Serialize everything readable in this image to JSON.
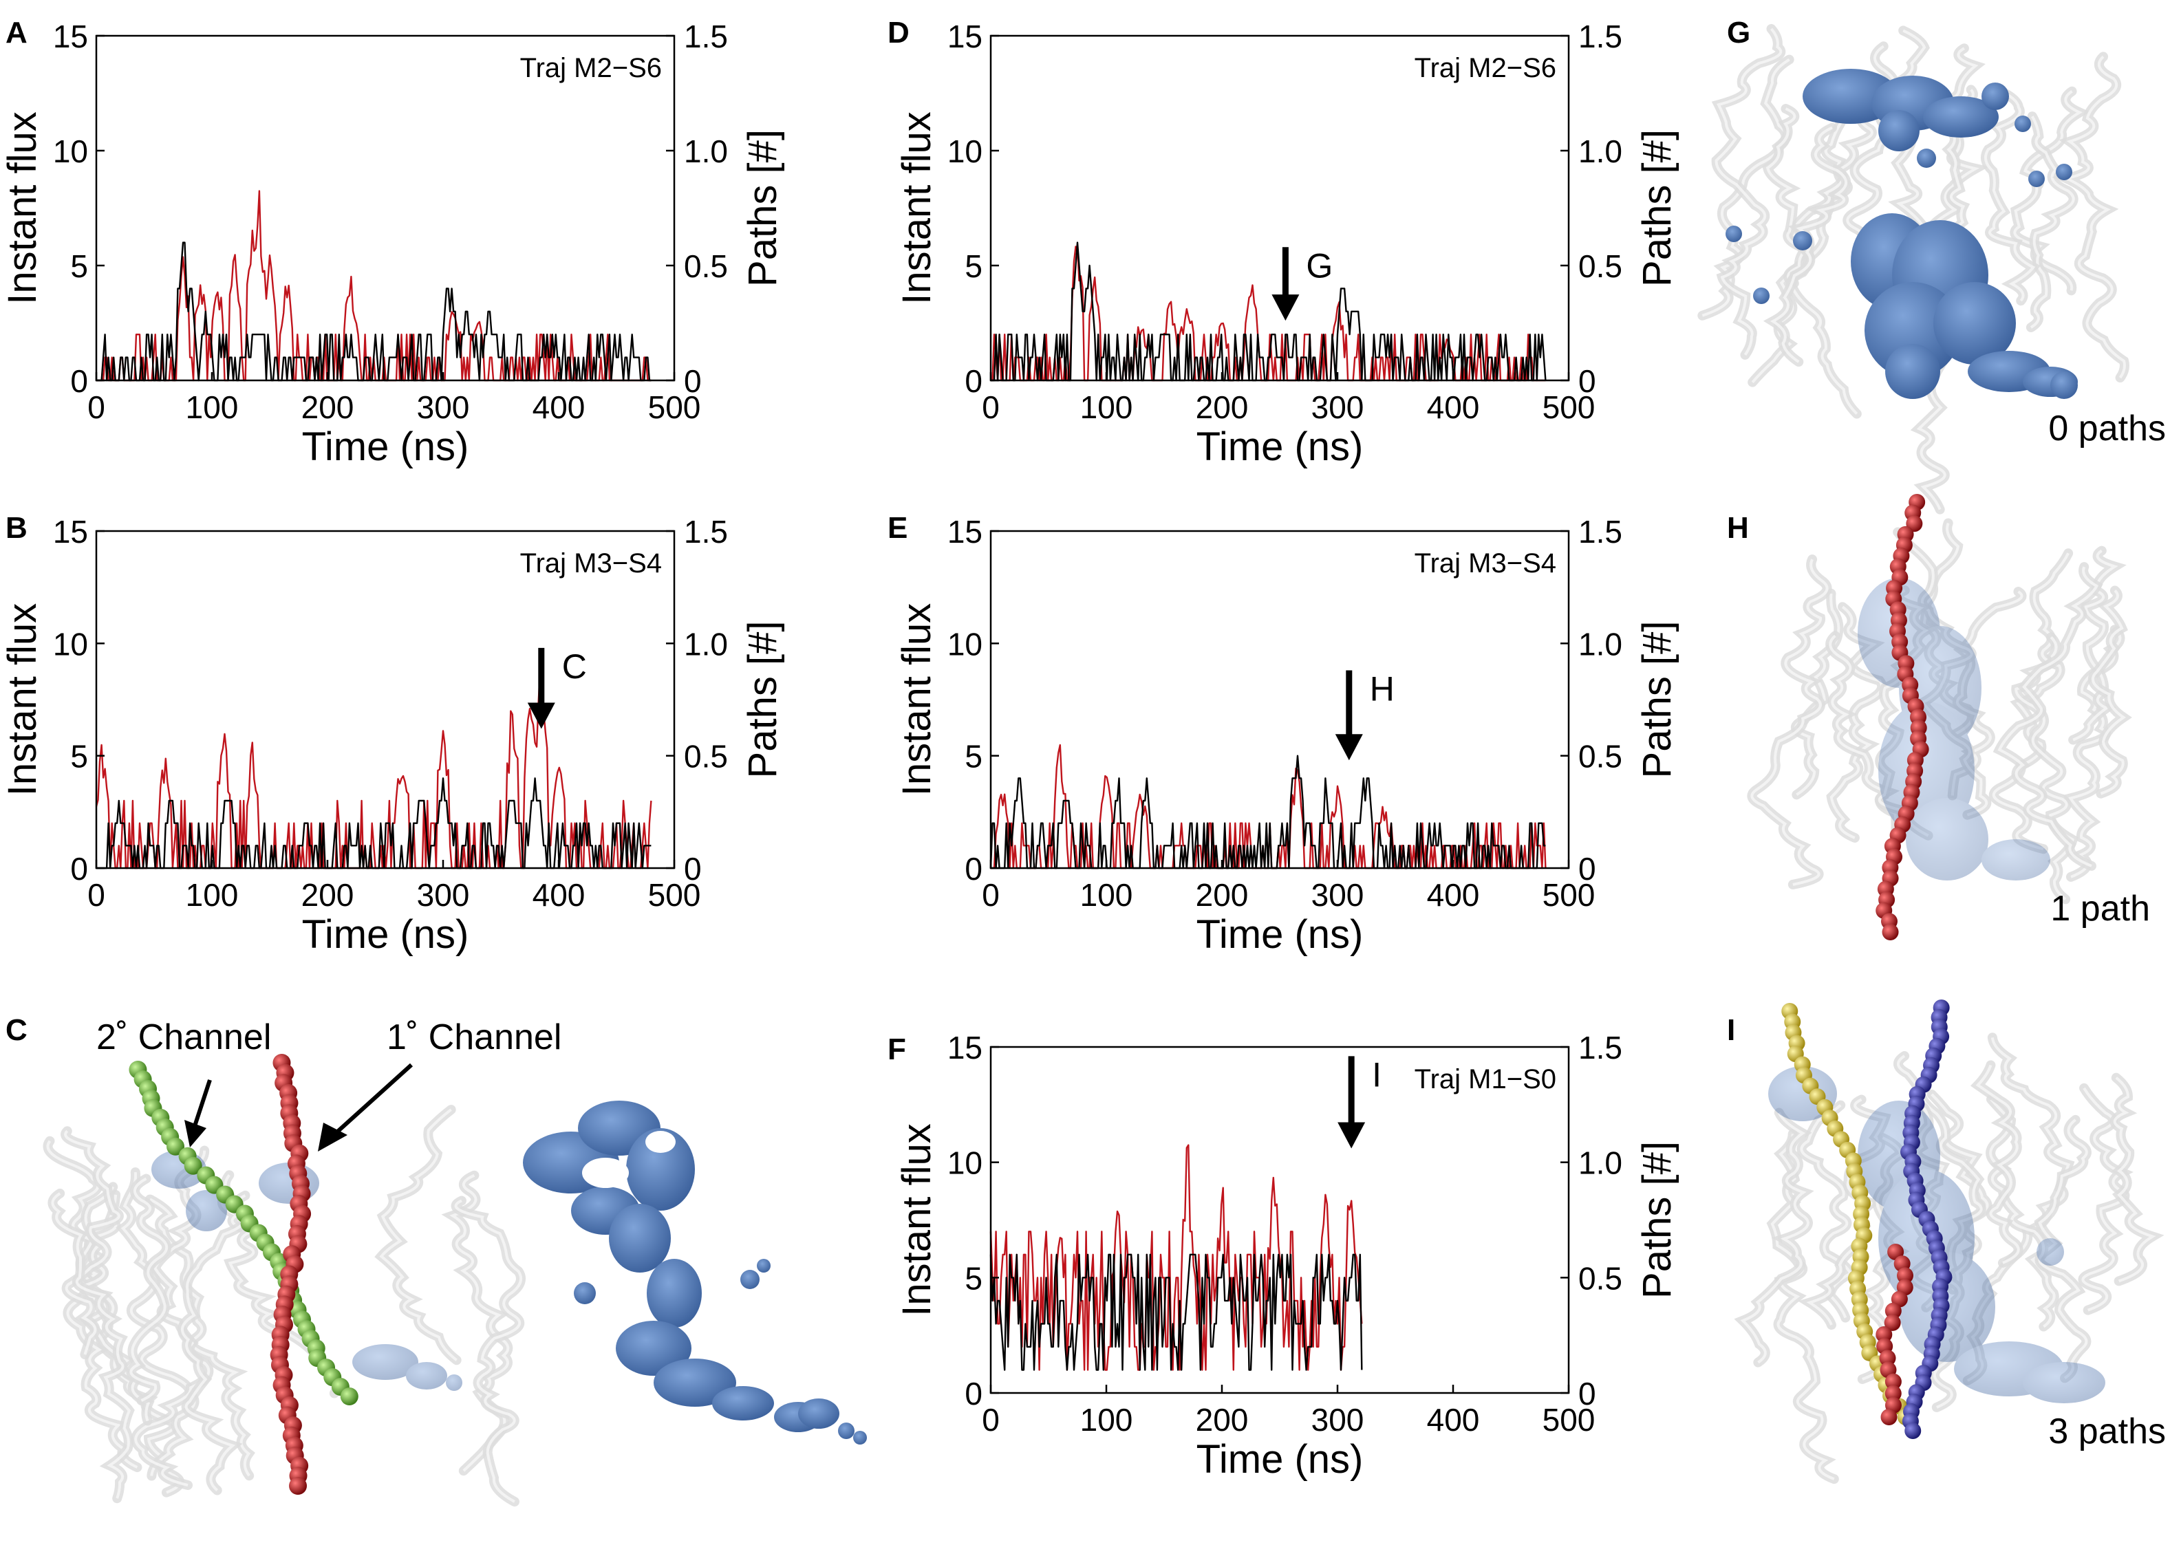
{
  "panels": {
    "A": {
      "letter": "A",
      "traj": "Traj M2−S6",
      "last_tick": "500"
    },
    "B": {
      "letter": "B",
      "traj": "Traj M3−S4",
      "last_tick": "500",
      "marker": "C"
    },
    "C": {
      "letter": "C",
      "channel2": "2˚ Channel",
      "channel1": "1˚ Channel"
    },
    "D": {
      "letter": "D",
      "traj": "Traj M2−S6",
      "last_tick": "500",
      "marker": "G"
    },
    "E": {
      "letter": "E",
      "traj": "Traj M3−S4",
      "last_tick": "500",
      "marker": "H"
    },
    "F": {
      "letter": "F",
      "traj": "Traj M1−S0",
      "last_tick": "500",
      "marker": "I"
    },
    "G": {
      "letter": "G",
      "caption": "0 paths"
    },
    "H": {
      "letter": "H",
      "caption": "1 path"
    },
    "I": {
      "letter": "I",
      "caption": "3 paths"
    }
  },
  "axis_labels": {
    "ylabel": "Instant flux",
    "y2label": "Paths [#]",
    "xlabel": "Time (ns)",
    "y_ticks": [
      "0",
      "5",
      "10",
      "15"
    ],
    "y2_ticks": [
      "0",
      "0.5",
      "1.0",
      "1.5"
    ],
    "x_ticks": [
      "0",
      "100",
      "200",
      "300",
      "400"
    ]
  },
  "colors": {
    "flux_line": "#000000",
    "paths_line": "#c0141c",
    "protein_ribbon": "#d8d8d8",
    "water_density": "#4f79b8",
    "channel_primary": "#b8181c",
    "channel_secondary": "#6fbf3a",
    "channel_third": "#e8d040",
    "channel_blue": "#2a2aa0"
  },
  "chart_data": [
    {
      "panel": "A",
      "type": "line",
      "xlabel": "Time (ns)",
      "ylabel": "Instant flux",
      "y2label": "Paths [#]",
      "xlim": [
        0,
        500
      ],
      "ylim": [
        0,
        15
      ],
      "y2lim": [
        0,
        1.5
      ],
      "t_end": 480,
      "series": [
        {
          "name": "Instant flux",
          "axis": "left",
          "color": "#000000",
          "peaks": [
            [
              75,
              7
            ],
            [
              80,
              5
            ],
            [
              95,
              3
            ],
            [
              140,
              3
            ],
            [
              220,
              2
            ],
            [
              305,
              5
            ],
            [
              320,
              3
            ],
            [
              340,
              3
            ],
            [
              395,
              2
            ]
          ],
          "baseline_max": 2,
          "seed": 11
        },
        {
          "name": "Paths [#]",
          "axis": "right",
          "color": "#c0141c",
          "peaks": [
            [
              75,
              0.6
            ],
            [
              90,
              0.5
            ],
            [
              105,
              0.5
            ],
            [
              120,
              0.6
            ],
            [
              135,
              0.8
            ],
            [
              140,
              0.9
            ],
            [
              150,
              0.6
            ],
            [
              165,
              0.5
            ],
            [
              220,
              0.5
            ],
            [
              310,
              0.4
            ],
            [
              330,
              0.3
            ]
          ],
          "baseline_max": 0.2,
          "seed": 12
        }
      ]
    },
    {
      "panel": "B",
      "type": "line",
      "xlabel": "Time (ns)",
      "ylabel": "Instant flux",
      "y2label": "Paths [#]",
      "xlim": [
        0,
        500
      ],
      "ylim": [
        0,
        15
      ],
      "y2lim": [
        0,
        1.5
      ],
      "t_end": 480,
      "arrow_x": 385,
      "arrow_y": [
        9.8,
        6.2
      ],
      "series": [
        {
          "name": "Instant flux",
          "axis": "left",
          "color": "#000000",
          "peaks": [
            [
              20,
              3
            ],
            [
              65,
              4
            ],
            [
              115,
              4
            ],
            [
              280,
              4
            ],
            [
              300,
              4
            ],
            [
              360,
              4
            ],
            [
              380,
              5
            ]
          ],
          "baseline_max": 2,
          "seed": 21
        },
        {
          "name": "Paths [#]",
          "axis": "right",
          "color": "#c0141c",
          "peaks": [
            [
              5,
              0.6
            ],
            [
              60,
              0.6
            ],
            [
              110,
              0.7
            ],
            [
              135,
              0.6
            ],
            [
              265,
              0.6
            ],
            [
              300,
              0.7
            ],
            [
              360,
              0.8
            ],
            [
              375,
              0.9
            ],
            [
              385,
              1.0
            ],
            [
              400,
              0.6
            ]
          ],
          "baseline_max": 0.3,
          "seed": 22
        }
      ]
    },
    {
      "panel": "D",
      "type": "line",
      "xlabel": "Time (ns)",
      "ylabel": "Instant flux",
      "y2label": "Paths [#]",
      "xlim": [
        0,
        500
      ],
      "ylim": [
        0,
        15
      ],
      "y2lim": [
        0,
        1.5
      ],
      "t_end": 480,
      "arrow_x": 255,
      "arrow_y": [
        5.8,
        2.6
      ],
      "series": [
        {
          "name": "Instant flux",
          "axis": "left",
          "color": "#000000",
          "peaks": [
            [
              75,
              7
            ],
            [
              85,
              5
            ],
            [
              150,
              3
            ],
            [
              245,
              2
            ],
            [
              305,
              5
            ],
            [
              315,
              4
            ],
            [
              340,
              2
            ]
          ],
          "baseline_max": 2,
          "seed": 31
        },
        {
          "name": "Paths [#]",
          "axis": "right",
          "color": "#c0141c",
          "peaks": [
            [
              75,
              0.7
            ],
            [
              90,
              0.5
            ],
            [
              130,
              0.3
            ],
            [
              155,
              0.4
            ],
            [
              170,
              0.4
            ],
            [
              200,
              0.3
            ],
            [
              225,
              0.5
            ],
            [
              300,
              0.4
            ],
            [
              395,
              0.2
            ]
          ],
          "baseline_max": 0.2,
          "seed": 32
        }
      ]
    },
    {
      "panel": "E",
      "type": "line",
      "xlabel": "Time (ns)",
      "ylabel": "Instant flux",
      "y2label": "Paths [#]",
      "xlim": [
        0,
        500
      ],
      "ylim": [
        0,
        15
      ],
      "y2lim": [
        0,
        1.5
      ],
      "t_end": 480,
      "arrow_x": 310,
      "arrow_y": [
        8.8,
        4.8
      ],
      "series": [
        {
          "name": "Instant flux",
          "axis": "left",
          "color": "#000000",
          "peaks": [
            [
              25,
              4
            ],
            [
              65,
              4
            ],
            [
              110,
              4
            ],
            [
              135,
              4
            ],
            [
              265,
              6
            ],
            [
              290,
              4
            ],
            [
              325,
              5
            ]
          ],
          "baseline_max": 2,
          "seed": 41
        },
        {
          "name": "Paths [#]",
          "axis": "right",
          "color": "#c0141c",
          "peaks": [
            [
              10,
              0.4
            ],
            [
              60,
              0.6
            ],
            [
              100,
              0.5
            ],
            [
              130,
              0.4
            ],
            [
              265,
              0.5
            ],
            [
              300,
              0.4
            ],
            [
              340,
              0.3
            ]
          ],
          "baseline_max": 0.2,
          "seed": 42
        }
      ]
    },
    {
      "panel": "F",
      "type": "line",
      "xlabel": "Time (ns)",
      "ylabel": "Instant flux",
      "y2label": "Paths [#]",
      "xlim": [
        0,
        500
      ],
      "ylim": [
        0,
        15
      ],
      "y2lim": [
        0,
        1.5
      ],
      "t_end": 322,
      "arrow_x": 312,
      "arrow_y": [
        14.6,
        10.6
      ],
      "series": [
        {
          "name": "Instant flux",
          "axis": "left",
          "color": "#000000",
          "peaks": [
            [
              80,
              6
            ],
            [
              120,
              7
            ],
            [
              175,
              8
            ],
            [
              200,
              7
            ],
            [
              250,
              7
            ],
            [
              290,
              6
            ],
            [
              312,
              7
            ]
          ],
          "baseline_max": 6,
          "baseline_min": 1,
          "seed": 51
        },
        {
          "name": "Paths [#]",
          "axis": "right",
          "color": "#c0141c",
          "peaks": [
            [
              60,
              0.8
            ],
            [
              110,
              0.9
            ],
            [
              170,
              1.2
            ],
            [
              200,
              1.0
            ],
            [
              245,
              1.1
            ],
            [
              290,
              1.0
            ],
            [
              312,
              1.1
            ]
          ],
          "baseline_max": 0.7,
          "baseline_min": 0.1,
          "seed": 52
        }
      ]
    }
  ]
}
